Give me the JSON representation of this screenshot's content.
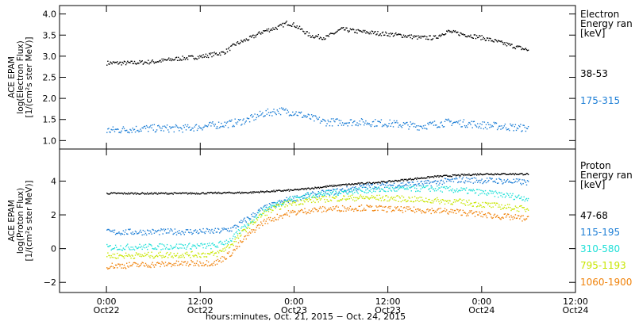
{
  "chart_data": [
    {
      "type": "scatter",
      "panel": "electron",
      "ylabel_lines": [
        "ACE EPAM",
        "log(Electron Flux)",
        "[1/(cm²s ster MeV)]"
      ],
      "legend_title": [
        "Electron",
        "Energy ran",
        "[keV]"
      ],
      "ylim": [
        0.8,
        4.2
      ],
      "yticks": [
        {
          "value": 1.0,
          "label": "1.0"
        },
        {
          "value": 1.5,
          "label": "1.5"
        },
        {
          "value": 2.0,
          "label": "2.0"
        },
        {
          "value": 2.5,
          "label": "2.5"
        },
        {
          "value": 3.0,
          "label": "3.0"
        },
        {
          "value": 3.5,
          "label": "3.5"
        },
        {
          "value": 4.0,
          "label": "4.0"
        }
      ],
      "series": [
        {
          "name": "38-53",
          "color": "#000000",
          "points": [
            [
              0,
              2.85
            ],
            [
              6,
              2.85
            ],
            [
              12,
              2.88
            ],
            [
              18,
              2.95
            ],
            [
              24,
              3.0
            ],
            [
              30,
              3.1
            ],
            [
              33,
              3.3
            ],
            [
              37,
              3.45
            ],
            [
              40,
              3.6
            ],
            [
              44,
              3.7
            ],
            [
              46,
              3.8
            ],
            [
              48,
              3.75
            ],
            [
              52,
              3.5
            ],
            [
              56,
              3.45
            ],
            [
              60,
              3.65
            ],
            [
              64,
              3.6
            ],
            [
              70,
              3.55
            ],
            [
              76,
              3.5
            ],
            [
              80,
              3.45
            ],
            [
              84,
              3.45
            ],
            [
              87,
              3.6
            ],
            [
              90,
              3.55
            ],
            [
              96,
              3.45
            ],
            [
              102,
              3.3
            ],
            [
              108,
              3.15
            ]
          ]
        },
        {
          "name": "175-315",
          "color": "#1e7fd6",
          "points": [
            [
              0,
              1.25
            ],
            [
              10,
              1.3
            ],
            [
              20,
              1.3
            ],
            [
              28,
              1.38
            ],
            [
              32,
              1.42
            ],
            [
              36,
              1.5
            ],
            [
              40,
              1.65
            ],
            [
              44,
              1.72
            ],
            [
              48,
              1.68
            ],
            [
              52,
              1.55
            ],
            [
              56,
              1.45
            ],
            [
              64,
              1.45
            ],
            [
              72,
              1.42
            ],
            [
              80,
              1.35
            ],
            [
              88,
              1.45
            ],
            [
              96,
              1.38
            ],
            [
              108,
              1.3
            ]
          ]
        }
      ]
    },
    {
      "type": "scatter",
      "panel": "proton",
      "ylabel_lines": [
        "ACE EPAM",
        "log(Proton Flux)",
        "[1/(cm²s ster MeV)]"
      ],
      "legend_title": [
        "Proton",
        "Energy ran",
        "[keV]"
      ],
      "ylim": [
        -2.6,
        5.9
      ],
      "yticks": [
        {
          "value": -2,
          "label": "−2"
        },
        {
          "value": 0,
          "label": "0"
        },
        {
          "value": 2,
          "label": "2"
        },
        {
          "value": 4,
          "label": "4"
        }
      ],
      "series": [
        {
          "name": "47-68",
          "color": "#000000",
          "points": [
            [
              0,
              3.3
            ],
            [
              20,
              3.3
            ],
            [
              36,
              3.35
            ],
            [
              48,
              3.5
            ],
            [
              60,
              3.8
            ],
            [
              72,
              4.0
            ],
            [
              84,
              4.3
            ],
            [
              96,
              4.45
            ],
            [
              108,
              4.45
            ]
          ]
        },
        {
          "name": "115-195",
          "color": "#1e7fd6",
          "points": [
            [
              0,
              1.0
            ],
            [
              28,
              1.05
            ],
            [
              32,
              1.2
            ],
            [
              36,
              1.8
            ],
            [
              40,
              2.4
            ],
            [
              46,
              2.9
            ],
            [
              52,
              3.2
            ],
            [
              58,
              3.4
            ],
            [
              66,
              3.7
            ],
            [
              74,
              3.8
            ],
            [
              82,
              3.9
            ],
            [
              90,
              4.1
            ],
            [
              100,
              4.05
            ],
            [
              108,
              3.95
            ]
          ]
        },
        {
          "name": "310-580",
          "color": "#20e0d8",
          "points": [
            [
              0,
              0.1
            ],
            [
              28,
              0.2
            ],
            [
              32,
              0.6
            ],
            [
              36,
              1.5
            ],
            [
              40,
              2.3
            ],
            [
              46,
              2.9
            ],
            [
              52,
              3.2
            ],
            [
              58,
              3.35
            ],
            [
              66,
              3.5
            ],
            [
              74,
              3.55
            ],
            [
              82,
              3.6
            ],
            [
              90,
              3.5
            ],
            [
              100,
              3.25
            ],
            [
              108,
              3.0
            ]
          ]
        },
        {
          "name": "795-1193",
          "color": "#c8e600",
          "points": [
            [
              0,
              -0.4
            ],
            [
              28,
              -0.3
            ],
            [
              32,
              0.3
            ],
            [
              36,
              1.3
            ],
            [
              40,
              2.1
            ],
            [
              46,
              2.7
            ],
            [
              52,
              2.9
            ],
            [
              58,
              3.0
            ],
            [
              66,
              3.05
            ],
            [
              74,
              3.0
            ],
            [
              82,
              2.9
            ],
            [
              90,
              2.8
            ],
            [
              100,
              2.55
            ],
            [
              108,
              2.35
            ]
          ]
        },
        {
          "name": "1060-1900",
          "color": "#f0820a",
          "points": [
            [
              0,
              -1.0
            ],
            [
              28,
              -0.8
            ],
            [
              32,
              -0.2
            ],
            [
              36,
              0.8
            ],
            [
              40,
              1.6
            ],
            [
              46,
              2.1
            ],
            [
              52,
              2.3
            ],
            [
              58,
              2.4
            ],
            [
              66,
              2.45
            ],
            [
              74,
              2.35
            ],
            [
              82,
              2.3
            ],
            [
              90,
              2.2
            ],
            [
              100,
              1.95
            ],
            [
              108,
              1.8
            ]
          ]
        }
      ]
    }
  ],
  "x_axis": {
    "xlim_hours": [
      -12,
      120
    ],
    "ticks": [
      {
        "hour": 0,
        "time": "0:00",
        "date": "Oct22"
      },
      {
        "hour": 24,
        "time": "12:00",
        "date": "Oct22"
      },
      {
        "hour": 48,
        "time": "0:00",
        "date": "Oct23"
      },
      {
        "hour": 72,
        "time": "12:00",
        "date": "Oct23"
      },
      {
        "hour": 96,
        "time": "0:00",
        "date": "Oct24"
      },
      {
        "hour": 120,
        "time": "12:00",
        "date": "Oct24"
      }
    ],
    "title": "hours:minutes, Oct. 21, 2015 − Oct. 24, 2015"
  }
}
